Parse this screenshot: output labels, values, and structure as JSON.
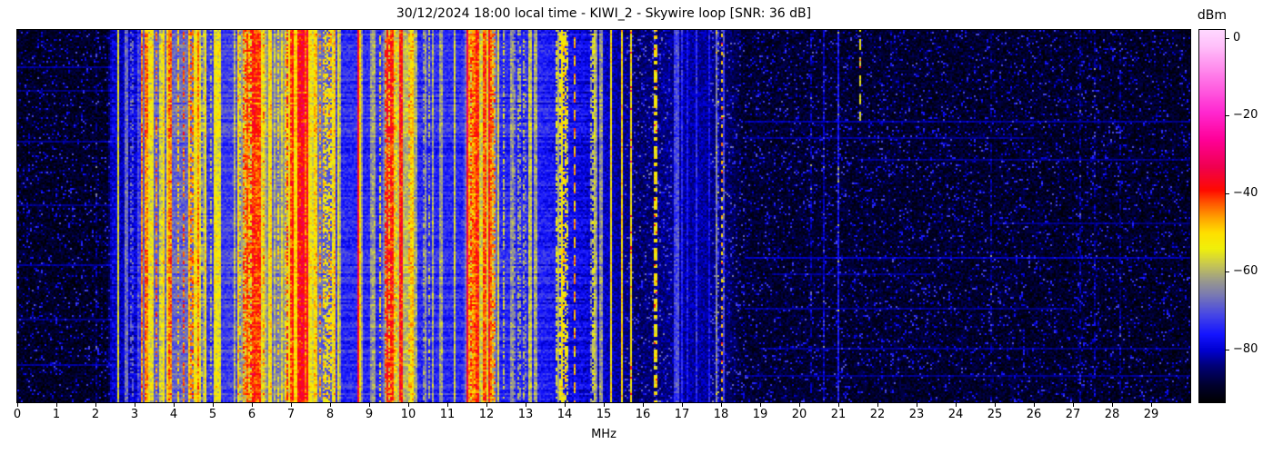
{
  "title": "30/12/2024 18:00 local time - KIWI_2 - Skywire loop [SNR: 36 dB]",
  "x_axis": {
    "label": "MHz",
    "tick_labels": [
      "0",
      "1",
      "2",
      "3",
      "4",
      "5",
      "6",
      "7",
      "8",
      "9",
      "10",
      "11",
      "12",
      "13",
      "14",
      "15",
      "16",
      "17",
      "18",
      "19",
      "20",
      "21",
      "22",
      "23",
      "24",
      "25",
      "26",
      "27",
      "28",
      "29"
    ],
    "tick_values": [
      0,
      1,
      2,
      3,
      4,
      5,
      6,
      7,
      8,
      9,
      10,
      11,
      12,
      13,
      14,
      15,
      16,
      17,
      18,
      19,
      20,
      21,
      22,
      23,
      24,
      25,
      26,
      27,
      28,
      29
    ]
  },
  "colorbar": {
    "label": "dBm",
    "tick_labels": [
      "0",
      "−20",
      "−40",
      "−60",
      "−80"
    ],
    "tick_values": [
      0,
      -20,
      -40,
      -60,
      -80
    ],
    "vmax": 2,
    "vmin": -93.5
  },
  "chart_data": {
    "type": "heatmap",
    "description": "HF spectrogram waterfall, x = frequency 0-30 MHz, y = time (unlabeled), color = power in dBm",
    "freq_range_mhz": [
      0,
      30
    ],
    "value_range_dbm": [
      -93.5,
      2
    ],
    "seed": 1337,
    "colormap_stops": [
      [
        -93.5,
        "#000000"
      ],
      [
        -89,
        "#00002e"
      ],
      [
        -84,
        "#000078"
      ],
      [
        -80,
        "#0000d2"
      ],
      [
        -76,
        "#1414ff"
      ],
      [
        -71,
        "#4646e6"
      ],
      [
        -66,
        "#7878b4"
      ],
      [
        -62,
        "#9c9c8a"
      ],
      [
        -58,
        "#c8c850"
      ],
      [
        -54,
        "#f0f00a"
      ],
      [
        -50,
        "#ffe000"
      ],
      [
        -46,
        "#ffa000"
      ],
      [
        -42,
        "#ff5000"
      ],
      [
        -39,
        "#ff0a00"
      ],
      [
        -33,
        "#f00050"
      ],
      [
        -26,
        "#ff0098"
      ],
      [
        -19,
        "#ff28d0"
      ],
      [
        -10,
        "#ff78e8"
      ],
      [
        -2,
        "#ffc0fa"
      ],
      [
        2,
        "#ffd8ff"
      ]
    ],
    "noise_floor": [
      [
        0,
        -90
      ],
      [
        2.3,
        -90
      ],
      [
        2.42,
        -79
      ],
      [
        2.62,
        -81
      ],
      [
        3.05,
        -79
      ],
      [
        3.2,
        -69
      ],
      [
        4.6,
        -67
      ],
      [
        4.75,
        -73
      ],
      [
        5.65,
        -71
      ],
      [
        5.8,
        -57
      ],
      [
        6.3,
        -55
      ],
      [
        6.45,
        -69
      ],
      [
        6.85,
        -62
      ],
      [
        7.0,
        -50
      ],
      [
        7.5,
        -52
      ],
      [
        7.7,
        -66
      ],
      [
        8.1,
        -71
      ],
      [
        8.25,
        -74
      ],
      [
        9.3,
        -74
      ],
      [
        9.45,
        -57
      ],
      [
        10.05,
        -60
      ],
      [
        10.2,
        -74
      ],
      [
        11.4,
        -74
      ],
      [
        11.55,
        -57
      ],
      [
        12.15,
        -57
      ],
      [
        12.3,
        -74
      ],
      [
        13.4,
        -75
      ],
      [
        14.1,
        -77
      ],
      [
        15.0,
        -80
      ],
      [
        15.9,
        -85
      ],
      [
        16.5,
        -84
      ],
      [
        17.0,
        -82
      ],
      [
        17.5,
        -82
      ],
      [
        18.2,
        -85
      ],
      [
        18.55,
        -89
      ],
      [
        30,
        -90
      ]
    ],
    "bands": [
      {
        "f0": 2.7,
        "f1": 3.2,
        "n": 5,
        "lmin": -72,
        "lmax": -62
      },
      {
        "f0": 3.2,
        "f1": 4.65,
        "n": 26,
        "lmin": -58,
        "lmax": -42
      },
      {
        "f0": 4.65,
        "f1": 5.7,
        "n": 12,
        "lmin": -62,
        "lmax": -50
      },
      {
        "f0": 5.75,
        "f1": 6.35,
        "n": 12,
        "lmin": -50,
        "lmax": -38
      },
      {
        "f0": 6.4,
        "f1": 6.9,
        "n": 9,
        "lmin": -60,
        "lmax": -48
      },
      {
        "f0": 6.9,
        "f1": 7.55,
        "n": 14,
        "lmin": -46,
        "lmax": -35
      },
      {
        "f0": 7.55,
        "f1": 8.2,
        "n": 9,
        "lmin": -58,
        "lmax": -46
      },
      {
        "f0": 8.2,
        "f1": 9.3,
        "n": 9,
        "lmin": -64,
        "lmax": -50
      },
      {
        "f0": 9.35,
        "f1": 10.1,
        "n": 12,
        "lmin": -50,
        "lmax": -38
      },
      {
        "f0": 10.1,
        "f1": 11.4,
        "n": 7,
        "lmin": -66,
        "lmax": -56
      },
      {
        "f0": 11.45,
        "f1": 12.2,
        "n": 11,
        "lmin": -50,
        "lmax": -40
      },
      {
        "f0": 12.25,
        "f1": 13.35,
        "n": 10,
        "lmin": -66,
        "lmax": -54
      },
      {
        "f0": 13.35,
        "f1": 14.1,
        "n": 8,
        "lmin": -62,
        "lmax": -50
      },
      {
        "f0": 14.1,
        "f1": 15.0,
        "n": 7,
        "lmin": -64,
        "lmax": -54
      },
      {
        "f0": 16.6,
        "f1": 18.1,
        "n": 7,
        "lmin": -74,
        "lmax": -62
      }
    ],
    "lines": [
      {
        "f": 2.0,
        "l": -84,
        "style": "dashed"
      },
      {
        "f": 2.56,
        "l": -56
      },
      {
        "f": 6.0,
        "l": -40,
        "w": 2
      },
      {
        "f": 7.18,
        "l": -38,
        "w": 3
      },
      {
        "f": 7.3,
        "l": -36,
        "w": 2
      },
      {
        "f": 8.72,
        "l": -35
      },
      {
        "f": 9.55,
        "l": -40,
        "w": 2
      },
      {
        "f": 9.8,
        "l": -39,
        "w": 2
      },
      {
        "f": 11.5,
        "l": -33
      },
      {
        "f": 11.73,
        "l": -40,
        "w": 2
      },
      {
        "f": 11.93,
        "l": -42,
        "w": 2
      },
      {
        "f": 12.05,
        "l": -38
      },
      {
        "f": 14.25,
        "l": -47,
        "style": "dashed"
      },
      {
        "f": 15.2,
        "l": -52
      },
      {
        "f": 15.47,
        "l": -50
      },
      {
        "f": 15.72,
        "l": -52
      },
      {
        "f": 16.3,
        "l": -52,
        "style": "dashdot",
        "w": 2
      },
      {
        "f": 17.0,
        "l": -74
      },
      {
        "f": 17.15,
        "l": -76
      },
      {
        "f": 17.35,
        "l": -74
      },
      {
        "f": 17.7,
        "l": -77
      },
      {
        "f": 18.02,
        "l": -48,
        "style": "dotted"
      },
      {
        "f": 20.3,
        "l": -81,
        "style": "dashed"
      },
      {
        "f": 20.65,
        "l": -81
      },
      {
        "f": 21.0,
        "l": -76
      },
      {
        "f": 21.55,
        "l": -55,
        "style": "dashed",
        "t1": 0.24
      },
      {
        "f": 24.9,
        "l": -83,
        "style": "dashed"
      },
      {
        "f": 27.2,
        "l": -83,
        "style": "dashed"
      },
      {
        "f": 27.55,
        "l": -82,
        "style": "dashed"
      },
      {
        "f": 28.2,
        "l": -83,
        "style": "dashed"
      }
    ],
    "h_lines": [
      {
        "t": 0.1,
        "f0": 0,
        "f1": 2.4,
        "d": 6
      },
      {
        "t": 0.16,
        "f0": 0,
        "f1": 2.4,
        "d": 5
      },
      {
        "t": 0.3,
        "f0": 0,
        "f1": 2.4,
        "d": 6
      },
      {
        "t": 0.47,
        "f0": 0,
        "f1": 2.4,
        "d": 5
      },
      {
        "t": 0.63,
        "f0": 0,
        "f1": 2.4,
        "d": 6
      },
      {
        "t": 0.78,
        "f0": 0,
        "f1": 2.4,
        "d": 5
      },
      {
        "t": 0.9,
        "f0": 0,
        "f1": 2.4,
        "d": 6
      },
      {
        "t": 0.245,
        "f0": 18.6,
        "f1": 30,
        "d": 6
      },
      {
        "t": 0.29,
        "f0": 18.6,
        "f1": 26,
        "d": 5
      },
      {
        "t": 0.35,
        "f0": 21.5,
        "f1": 30,
        "d": 5
      },
      {
        "t": 0.52,
        "f0": 25,
        "f1": 30,
        "d": 5
      },
      {
        "t": 0.615,
        "f0": 18.6,
        "f1": 30,
        "d": 7
      },
      {
        "t": 0.655,
        "f0": 19.3,
        "f1": 23.5,
        "d": 5
      },
      {
        "t": 0.75,
        "f0": 18.6,
        "f1": 27,
        "d": 5
      },
      {
        "t": 0.86,
        "f0": 19,
        "f1": 30,
        "d": 5
      },
      {
        "t": 0.93,
        "f0": 18.6,
        "f1": 30,
        "d": 5
      }
    ],
    "speckle": {
      "prob": 0.1,
      "min": 6,
      "max": 18
    }
  }
}
